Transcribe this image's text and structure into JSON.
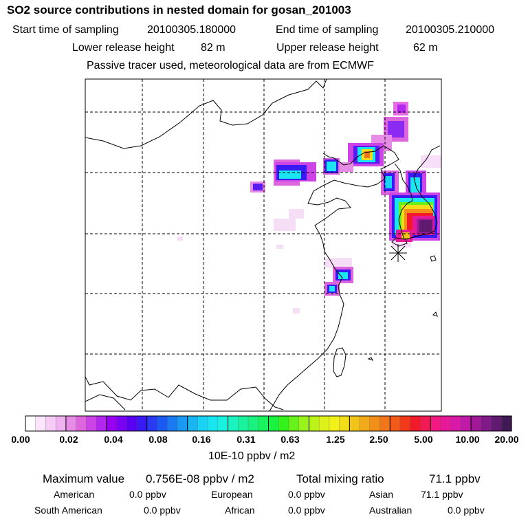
{
  "chart_data": {
    "type": "heatmap",
    "title": "SO2 source contributions in nested domain for gosan_201003",
    "subtitle_lines": {
      "start_label": "Start time of sampling",
      "start_value": "20100305.180000",
      "end_label": "End time of sampling",
      "end_value": "20100305.210000",
      "lower_label": "Lower release height",
      "lower_value": "82 m",
      "upper_label": "Upper release height",
      "upper_value": "62 m",
      "note": "Passive tracer used, meteorological data are from ECMWF"
    },
    "colorbar": {
      "ticks": [
        "0.00",
        "0.02",
        "0.04",
        "0.08",
        "0.16",
        "0.31",
        "0.63",
        "1.25",
        "2.50",
        "5.00",
        "10.00",
        "20.00"
      ],
      "unit": "10E-10 ppbv / m2",
      "colors": [
        "#ffffff",
        "#fbe6fb",
        "#f5ccf5",
        "#eeb2ee",
        "#e68ce6",
        "#dd66dd",
        "#cc44e6",
        "#b226ee",
        "#9900f2",
        "#7a00f2",
        "#5a00f2",
        "#3a1af2",
        "#2a3af2",
        "#1a5af2",
        "#1a7af2",
        "#1a9af2",
        "#1ab6f2",
        "#1ad2f2",
        "#1ae6f2",
        "#1af2e0",
        "#1af2c0",
        "#1af2a0",
        "#1af280",
        "#1af260",
        "#1af240",
        "#33f21a",
        "#66f21a",
        "#99f21a",
        "#bbf21a",
        "#ddf21a",
        "#f2f21a",
        "#f2dd1a",
        "#f2c41a",
        "#f2aa1a",
        "#f2901a",
        "#f2761a",
        "#f25a1a",
        "#f23a1a",
        "#f21a2a",
        "#f21a55",
        "#f21a80",
        "#e61a99",
        "#d91aa8",
        "#c01aa8",
        "#a01a98",
        "#801a88",
        "#601a70",
        "#401a55"
      ]
    },
    "stats": {
      "max_label": "Maximum value",
      "max_value": "0.756E-08 ppbv / m2",
      "total_label": "Total mixing ratio",
      "total_value": "71.1 ppbv"
    },
    "regions": [
      {
        "name": "American",
        "value": "0.0 ppbv"
      },
      {
        "name": "European",
        "value": "0.0 ppbv"
      },
      {
        "name": "Asian",
        "value": "71.1 ppbv"
      },
      {
        "name": "South American",
        "value": "0.0 ppbv"
      },
      {
        "name": "African",
        "value": "0.0 ppbv"
      },
      {
        "name": "Australian",
        "value": "0.0 ppbv"
      }
    ],
    "receptor": "gosan"
  }
}
